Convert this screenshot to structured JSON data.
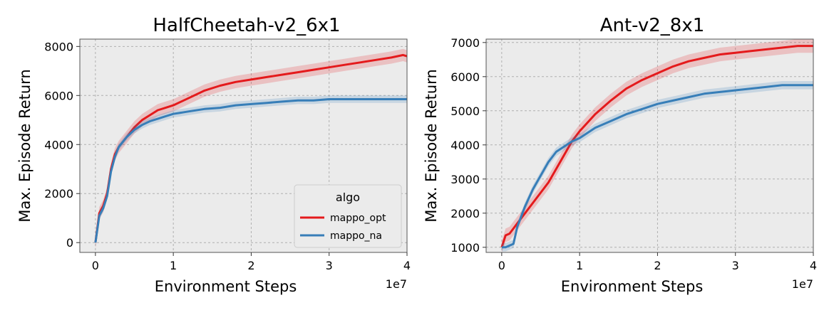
{
  "colors": {
    "mappo_opt": "#e41a1c",
    "mappo_na": "#377eb8",
    "plot_bg": "#ebebeb",
    "grid": "#b0b0b0"
  },
  "legend": {
    "title": "algo",
    "placement": "lower right of left panel",
    "entries": [
      "mappo_opt",
      "mappo_na"
    ]
  },
  "chart_data": [
    {
      "type": "line",
      "title": "HalfCheetah-v2_6x1",
      "xlabel": "Environment Steps",
      "ylabel": "Max. Episode Return",
      "x_multiplier_label": "1e7",
      "xlim": [
        -0.2,
        4.0
      ],
      "ylim": [
        -400,
        8300
      ],
      "xticks": [
        0,
        1,
        2,
        3,
        4
      ],
      "xtick_labels": [
        "0",
        "1",
        "2",
        "3",
        "4"
      ],
      "yticks": [
        0,
        2000,
        4000,
        6000,
        8000
      ],
      "ytick_labels": [
        "0",
        "2000",
        "4000",
        "6000",
        "8000"
      ],
      "grid": true,
      "has_legend": true,
      "series": [
        {
          "name": "mappo_opt",
          "color": "#e41a1c",
          "x": [
            0,
            0.05,
            0.1,
            0.15,
            0.2,
            0.25,
            0.3,
            0.4,
            0.5,
            0.6,
            0.7,
            0.8,
            0.9,
            1.0,
            1.2,
            1.4,
            1.6,
            1.8,
            2.0,
            2.2,
            2.4,
            2.6,
            2.8,
            3.0,
            3.2,
            3.4,
            3.6,
            3.8,
            3.95,
            4.0
          ],
          "y": [
            0,
            1200,
            1500,
            2000,
            3000,
            3600,
            3900,
            4300,
            4700,
            5000,
            5200,
            5400,
            5500,
            5600,
            5900,
            6200,
            6400,
            6550,
            6650,
            6750,
            6850,
            6950,
            7050,
            7150,
            7250,
            7350,
            7450,
            7550,
            7650,
            7600
          ],
          "band": 250
        },
        {
          "name": "mappo_na",
          "color": "#377eb8",
          "x": [
            0,
            0.05,
            0.1,
            0.15,
            0.2,
            0.25,
            0.3,
            0.4,
            0.5,
            0.6,
            0.7,
            0.8,
            0.9,
            1.0,
            1.2,
            1.4,
            1.6,
            1.8,
            2.0,
            2.2,
            2.4,
            2.6,
            2.8,
            3.0,
            3.2,
            3.4,
            3.6,
            3.8,
            3.95,
            4.0
          ],
          "y": [
            0,
            1100,
            1400,
            1900,
            2900,
            3500,
            3900,
            4300,
            4600,
            4800,
            4950,
            5050,
            5150,
            5250,
            5350,
            5450,
            5500,
            5600,
            5650,
            5700,
            5750,
            5800,
            5800,
            5850,
            5850,
            5850,
            5850,
            5850,
            5850,
            5850
          ],
          "band": 150
        }
      ]
    },
    {
      "type": "line",
      "title": "Ant-v2_8x1",
      "xlabel": "Environment Steps",
      "ylabel": "Max. Episode Return",
      "x_multiplier_label": "1e7",
      "xlim": [
        -0.2,
        4.0
      ],
      "ylim": [
        850,
        7100
      ],
      "xticks": [
        0,
        1,
        2,
        3,
        4
      ],
      "xtick_labels": [
        "0",
        "1",
        "2",
        "3",
        "4"
      ],
      "yticks": [
        1000,
        2000,
        3000,
        4000,
        5000,
        6000,
        7000
      ],
      "ytick_labels": [
        "1000",
        "2000",
        "3000",
        "4000",
        "5000",
        "6000",
        "7000"
      ],
      "grid": true,
      "has_legend": false,
      "series": [
        {
          "name": "mappo_opt",
          "color": "#e41a1c",
          "x": [
            0,
            0.05,
            0.1,
            0.15,
            0.2,
            0.3,
            0.4,
            0.5,
            0.6,
            0.7,
            0.8,
            0.9,
            1.0,
            1.2,
            1.4,
            1.6,
            1.8,
            2.0,
            2.2,
            2.4,
            2.6,
            2.8,
            3.0,
            3.2,
            3.4,
            3.6,
            3.8,
            3.95,
            4.0
          ],
          "y": [
            1000,
            1350,
            1400,
            1550,
            1700,
            2000,
            2300,
            2600,
            2900,
            3300,
            3700,
            4100,
            4400,
            4900,
            5300,
            5650,
            5900,
            6100,
            6300,
            6450,
            6550,
            6650,
            6700,
            6750,
            6800,
            6850,
            6900,
            6900,
            6900
          ],
          "band": 200
        },
        {
          "name": "mappo_na",
          "color": "#377eb8",
          "x": [
            0,
            0.05,
            0.1,
            0.15,
            0.2,
            0.3,
            0.4,
            0.5,
            0.6,
            0.7,
            0.8,
            0.9,
            1.0,
            1.2,
            1.4,
            1.6,
            1.8,
            2.0,
            2.2,
            2.4,
            2.6,
            2.8,
            3.0,
            3.2,
            3.4,
            3.6,
            3.8,
            3.95,
            4.0
          ],
          "y": [
            1000,
            1000,
            1050,
            1100,
            1600,
            2200,
            2700,
            3100,
            3500,
            3800,
            3950,
            4100,
            4200,
            4500,
            4700,
            4900,
            5050,
            5200,
            5300,
            5400,
            5500,
            5550,
            5600,
            5650,
            5700,
            5750,
            5750,
            5750,
            5750
          ],
          "band": 120
        }
      ]
    }
  ]
}
